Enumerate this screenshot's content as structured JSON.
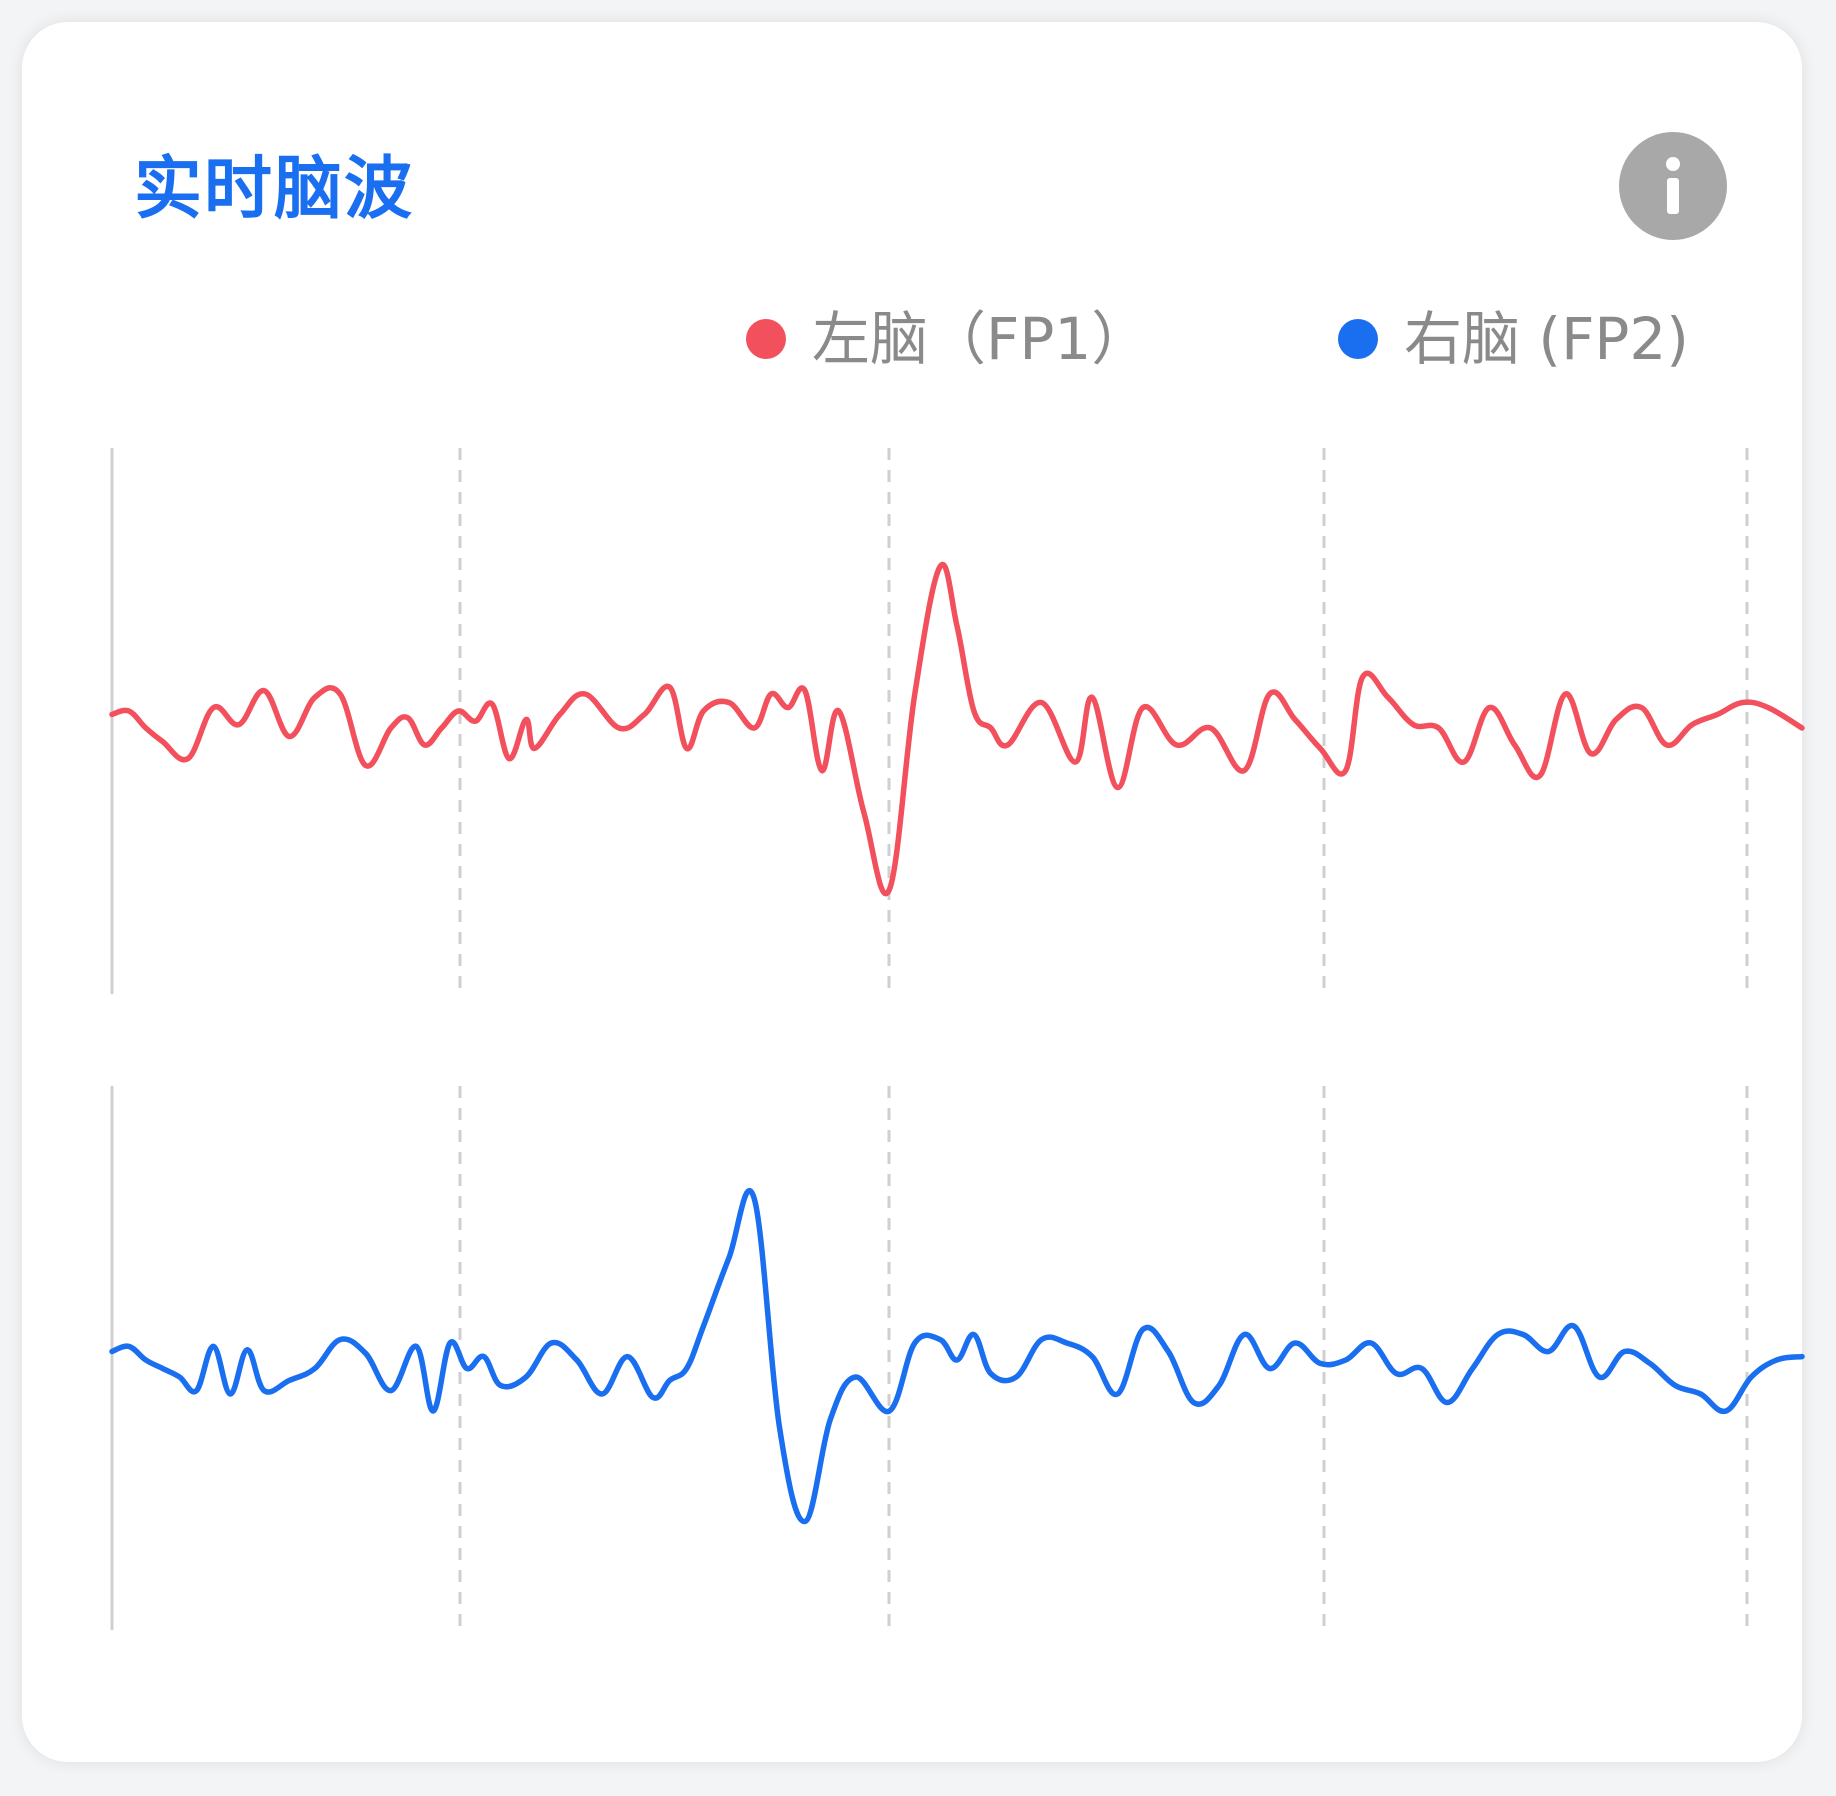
{
  "title": "实时脑波",
  "info_icon": "info-icon",
  "colors": {
    "title": "#1a6ef0",
    "left": "#f2505c",
    "right": "#1a6ef0",
    "grid": "#cfcfcf"
  },
  "legend": {
    "left_label": "左脑（FP1）",
    "right_label": "右脑 (FP2)"
  },
  "chart_data": {
    "type": "line",
    "title": "实时脑波",
    "xlabel": "",
    "ylabel": "",
    "grid": "vertical dashed",
    "legend_position": "top-right",
    "x_range": [
      0,
      100
    ],
    "y_range": [
      -100,
      100
    ],
    "series": [
      {
        "name": "左脑（FP1）",
        "color": "#f2505c",
        "x": [
          0,
          1,
          2,
          3,
          4.5,
          6,
          7.5,
          9,
          10.5,
          12,
          13.5,
          15,
          16.5,
          17.5,
          18.5,
          19.5,
          20.5,
          21.5,
          22.5,
          23.5,
          24.5,
          25,
          26.5,
          28,
          30,
          31.5,
          33,
          34,
          35,
          36.5,
          38,
          39,
          40,
          41,
          42,
          43,
          44.5,
          46,
          47.5,
          49,
          50,
          51,
          52,
          53,
          55,
          57,
          58,
          59.5,
          61,
          63,
          65,
          67,
          68.5,
          70,
          71.5,
          73,
          74,
          75.5,
          77,
          78.5,
          80,
          81.5,
          83,
          84.5,
          86,
          87.5,
          89,
          90.5,
          92,
          93.5,
          95,
          96.5,
          98,
          100
        ],
        "y": [
          8,
          10,
          0,
          -8,
          -18,
          12,
          2,
          22,
          -5,
          18,
          20,
          -22,
          0,
          6,
          -10,
          0,
          10,
          4,
          14,
          -18,
          5,
          -12,
          8,
          20,
          0,
          8,
          24,
          -12,
          10,
          15,
          0,
          20,
          12,
          22,
          -25,
          10,
          -50,
          -95,
          20,
          95,
          60,
          10,
          0,
          -10,
          15,
          -20,
          18,
          -35,
          12,
          -10,
          0,
          -25,
          20,
          5,
          -12,
          -25,
          30,
          18,
          2,
          0,
          -20,
          12,
          -10,
          -28,
          20,
          -15,
          5,
          12,
          -10,
          2,
          8,
          15,
          12,
          0
        ]
      },
      {
        "name": "右脑 (FP2)",
        "color": "#1a6ef0",
        "x": [
          0,
          1,
          2,
          3,
          4,
          5,
          6,
          7,
          8,
          9,
          10.5,
          12,
          13.5,
          15,
          16.5,
          18,
          19,
          20,
          21,
          22,
          23,
          24.5,
          26,
          27.5,
          29,
          30.5,
          32,
          33,
          34,
          35,
          36.5,
          38,
          39.5,
          41,
          42.5,
          44,
          46,
          47.5,
          49,
          50,
          51,
          52,
          53.5,
          55,
          56.5,
          58,
          59.5,
          61,
          62.5,
          64,
          65.5,
          67,
          68.5,
          70,
          71.5,
          73,
          74.5,
          76,
          77.5,
          79,
          80.5,
          82,
          83.5,
          85,
          86.5,
          88,
          89.5,
          91,
          92.5,
          94,
          95.5,
          97,
          98.5,
          100
        ],
        "y": [
          5,
          8,
          0,
          -5,
          -10,
          -18,
          8,
          -20,
          6,
          -18,
          -12,
          -5,
          12,
          4,
          -18,
          8,
          -30,
          10,
          -5,
          2,
          -15,
          -10,
          10,
          0,
          -20,
          2,
          -22,
          -12,
          -5,
          20,
          60,
          95,
          -40,
          -95,
          -35,
          -10,
          -30,
          10,
          12,
          0,
          15,
          -8,
          -10,
          12,
          10,
          2,
          -20,
          18,
          5,
          -25,
          -15,
          15,
          -5,
          10,
          -2,
          0,
          10,
          -8,
          -5,
          -25,
          -5,
          15,
          15,
          5,
          20,
          -10,
          5,
          -2,
          -15,
          -20,
          -30,
          -10,
          0,
          2
        ]
      }
    ]
  }
}
